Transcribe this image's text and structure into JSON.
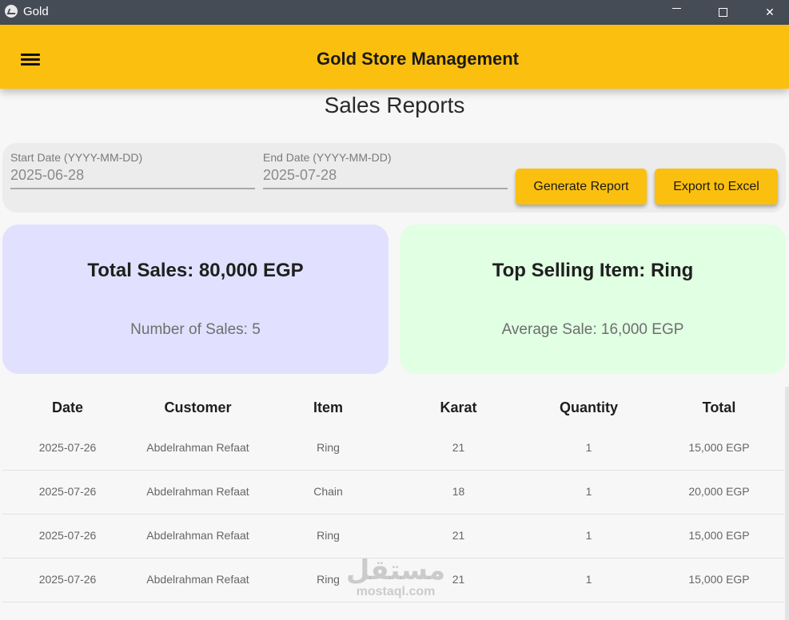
{
  "window": {
    "title": "Gold",
    "icon": "app-logo-icon"
  },
  "appbar": {
    "title": "Gold Store Management",
    "menu_icon": "hamburger-menu-icon",
    "color": "#fbc00f"
  },
  "page": {
    "title": "Sales Reports"
  },
  "filters": {
    "start_label": "Start Date (YYYY-MM-DD)",
    "start_value": "2025-06-28",
    "end_label": "End Date (YYYY-MM-DD)",
    "end_value": "2025-07-28",
    "generate_label": "Generate Report",
    "export_label": "Export to Excel"
  },
  "stats": {
    "total_sales": "Total Sales: 80,000 EGP",
    "number_of_sales": "Number of Sales: 5",
    "top_item": "Top Selling Item: Ring",
    "average_sale": "Average Sale: 16,000 EGP"
  },
  "table": {
    "headers": [
      "Date",
      "Customer",
      "Item",
      "Karat",
      "Quantity",
      "Total"
    ],
    "rows": [
      [
        "2025-07-26",
        "Abdelrahman Refaat",
        "Ring",
        "21",
        "1",
        "15,000 EGP"
      ],
      [
        "2025-07-26",
        "Abdelrahman Refaat",
        "Chain",
        "18",
        "1",
        "20,000 EGP"
      ],
      [
        "2025-07-26",
        "Abdelrahman Refaat",
        "Ring",
        "21",
        "1",
        "15,000 EGP"
      ],
      [
        "2025-07-26",
        "Abdelrahman Refaat",
        "Ring",
        "21",
        "1",
        "15,000 EGP"
      ]
    ]
  },
  "watermark": {
    "arabic": "مستقل",
    "latin": "mostaql.com"
  }
}
